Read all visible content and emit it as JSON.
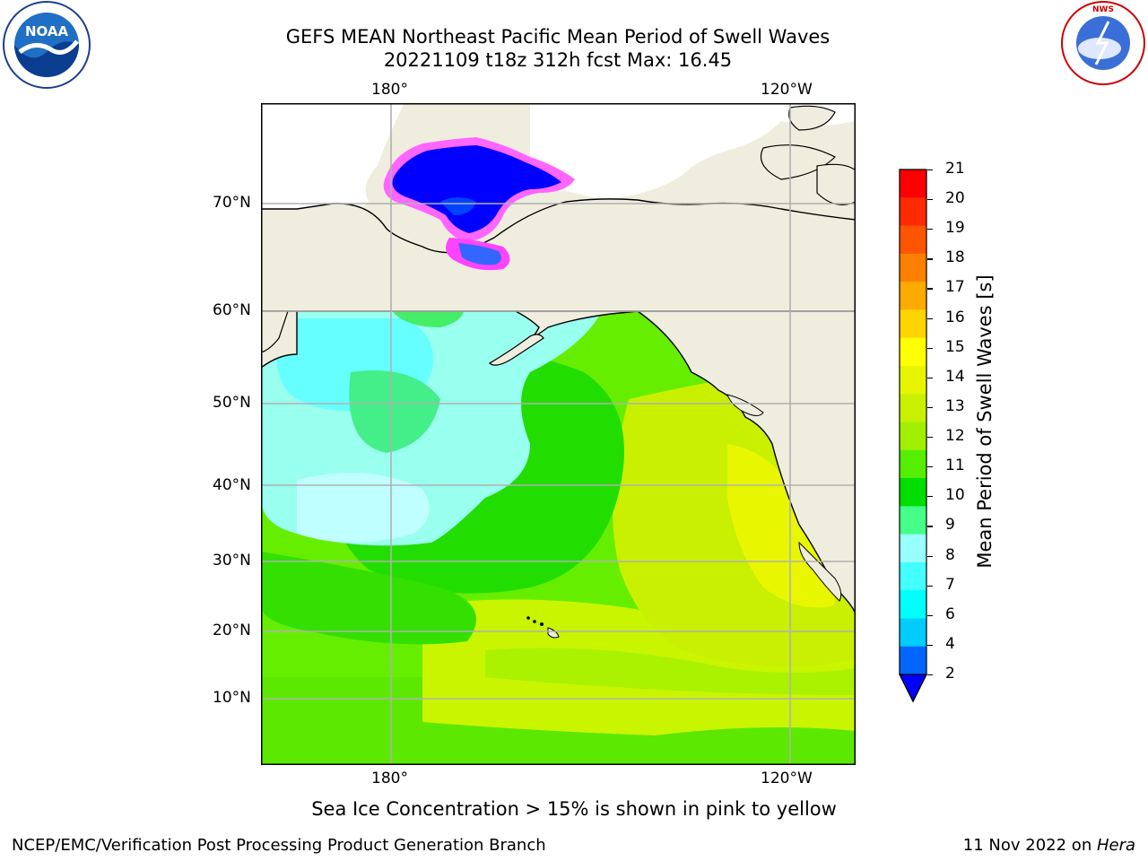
{
  "header": {
    "title_line1": "GEFS MEAN Northeast Pacific Mean Period of Swell Waves",
    "title_line2": "20221109 t18z 312h fcst   Max: 16.45"
  },
  "logos": {
    "left": {
      "text": "NOAA",
      "ring_text": "NATIONAL OCEANIC AND ATMOSPHERIC ADMINISTRATION · U.S. DEPARTMENT OF COMMERCE"
    },
    "right": {
      "ring_text": "NATIONAL WEATHER SERVICE"
    }
  },
  "map": {
    "lon_labels_top": [
      "180°",
      "120°W"
    ],
    "lon_labels_bottom": [
      "180°",
      "120°W"
    ],
    "lat_labels": [
      "70°N",
      "60°N",
      "50°N",
      "40°N",
      "30°N",
      "20°N",
      "10°N"
    ],
    "land_color": "#efedde",
    "grid_color": "#b0b0b0"
  },
  "colorbar": {
    "label": "Mean Period of Swell Waves [s]",
    "ticks": [
      "21",
      "20",
      "19",
      "18",
      "17",
      "16",
      "15",
      "14",
      "13",
      "12",
      "11",
      "10",
      "9",
      "8",
      "7",
      "6",
      "4",
      "2"
    ],
    "colors_top_to_bottom": [
      "#ff0000",
      "#ff2a00",
      "#ff5500",
      "#ff8000",
      "#ffaa00",
      "#ffd400",
      "#ffff00",
      "#e8f500",
      "#c8f000",
      "#a0f000",
      "#55ee00",
      "#00dd00",
      "#44ff88",
      "#99ffff",
      "#44ffff",
      "#00ffff",
      "#00ccff",
      "#0066ff"
    ],
    "extend_color": "#0000ff"
  },
  "note": "Sea Ice Concentration > 15% is shown in pink to yellow",
  "footer": {
    "left": "NCEP/EMC/Verification Post Processing Product Generation Branch",
    "right_prefix": "11 Nov 2022 on ",
    "right_host": "Hera"
  }
}
